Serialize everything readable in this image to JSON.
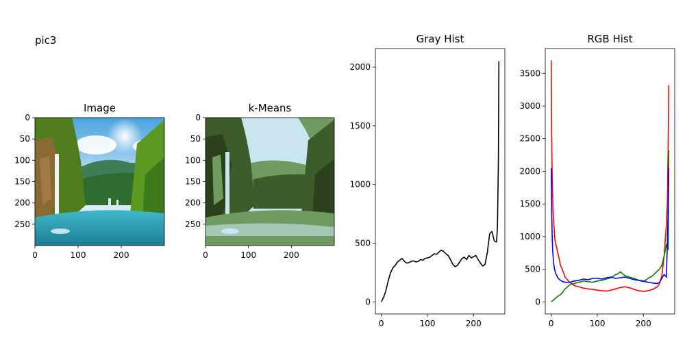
{
  "figure_title": "pic3",
  "chart_data": [
    {
      "type": "image",
      "title": "Image",
      "xticks": [
        "0",
        "100",
        "200"
      ],
      "yticks": [
        "0",
        "50",
        "100",
        "150",
        "200",
        "250"
      ],
      "xlim": [
        0,
        300
      ],
      "ylim": [
        300,
        0
      ]
    },
    {
      "type": "image",
      "title": "k-Means",
      "xticks": [
        "0",
        "100",
        "200"
      ],
      "yticks": [
        "0",
        "50",
        "100",
        "150",
        "200",
        "250"
      ],
      "xlim": [
        0,
        300
      ],
      "ylim": [
        300,
        0
      ],
      "cluster_colors": [
        "#c9e6ef",
        "#6f9a60",
        "#3d5c2a",
        "#2b401d"
      ]
    },
    {
      "type": "line",
      "title": "Gray Hist",
      "xticks": [
        "0",
        "100",
        "200"
      ],
      "yticks": [
        "0",
        "500",
        "1000",
        "1500",
        "2000"
      ],
      "xlim": [
        -13,
        268
      ],
      "ylim": [
        -103,
        2158
      ],
      "series": [
        {
          "color": "#000000",
          "x": [
            0,
            5,
            10,
            15,
            20,
            25,
            30,
            35,
            40,
            45,
            50,
            55,
            60,
            65,
            70,
            75,
            80,
            85,
            90,
            95,
            100,
            105,
            110,
            115,
            120,
            125,
            130,
            135,
            140,
            145,
            150,
            155,
            160,
            165,
            170,
            175,
            180,
            185,
            190,
            195,
            200,
            205,
            210,
            215,
            220,
            225,
            230,
            235,
            240,
            245,
            250,
            252,
            254,
            255
          ],
          "y": [
            0,
            40,
            100,
            180,
            250,
            290,
            310,
            340,
            355,
            370,
            345,
            330,
            335,
            345,
            350,
            340,
            345,
            360,
            355,
            370,
            375,
            380,
            395,
            410,
            405,
            425,
            440,
            430,
            410,
            395,
            360,
            320,
            300,
            310,
            340,
            370,
            380,
            360,
            395,
            375,
            385,
            395,
            360,
            330,
            305,
            320,
            420,
            580,
            600,
            520,
            510,
            640,
            1200,
            2050
          ]
        }
      ]
    },
    {
      "type": "line",
      "title": "RGB Hist",
      "xticks": [
        "0",
        "100",
        "200"
      ],
      "yticks": [
        "0",
        "500",
        "1000",
        "1500",
        "2000",
        "2500",
        "3000",
        "3500"
      ],
      "xlim": [
        -13,
        268
      ],
      "ylim": [
        -185,
        3880
      ],
      "series": [
        {
          "color": "#ff0000",
          "x": [
            0,
            1,
            2,
            4,
            6,
            8,
            12,
            16,
            20,
            25,
            30,
            40,
            50,
            60,
            70,
            80,
            90,
            100,
            110,
            120,
            130,
            140,
            150,
            160,
            170,
            180,
            190,
            200,
            210,
            220,
            230,
            235,
            240,
            245,
            250,
            252,
            254,
            255
          ],
          "y": [
            3700,
            2600,
            1900,
            1400,
            1150,
            950,
            820,
            700,
            560,
            480,
            380,
            300,
            250,
            230,
            210,
            200,
            190,
            180,
            170,
            165,
            180,
            200,
            220,
            230,
            215,
            190,
            170,
            160,
            170,
            190,
            230,
            280,
            400,
            700,
            1200,
            1500,
            2500,
            3320
          ]
        },
        {
          "color": "#008000",
          "x": [
            0,
            5,
            10,
            15,
            20,
            25,
            30,
            40,
            50,
            60,
            70,
            80,
            90,
            100,
            110,
            120,
            130,
            140,
            145,
            150,
            155,
            160,
            170,
            180,
            190,
            200,
            210,
            220,
            230,
            235,
            240,
            245,
            250,
            252,
            254,
            255
          ],
          "y": [
            0,
            30,
            60,
            90,
            110,
            150,
            200,
            260,
            280,
            300,
            320,
            310,
            300,
            320,
            330,
            350,
            370,
            420,
            430,
            460,
            430,
            400,
            380,
            360,
            330,
            310,
            360,
            400,
            470,
            500,
            560,
            700,
            880,
            820,
            800,
            2320
          ]
        },
        {
          "color": "#0000ff",
          "x": [
            0,
            1,
            2,
            3,
            5,
            7,
            10,
            15,
            20,
            25,
            30,
            40,
            50,
            60,
            70,
            80,
            90,
            100,
            110,
            120,
            130,
            140,
            150,
            160,
            170,
            180,
            190,
            200,
            210,
            220,
            230,
            235,
            240,
            245,
            250,
            252,
            254,
            255
          ],
          "y": [
            2050,
            1400,
            1000,
            800,
            600,
            500,
            430,
            360,
            330,
            310,
            300,
            300,
            320,
            330,
            350,
            340,
            360,
            360,
            350,
            370,
            380,
            360,
            370,
            380,
            360,
            340,
            330,
            320,
            300,
            290,
            280,
            300,
            360,
            420,
            380,
            900,
            1500,
            2050
          ]
        }
      ]
    }
  ]
}
